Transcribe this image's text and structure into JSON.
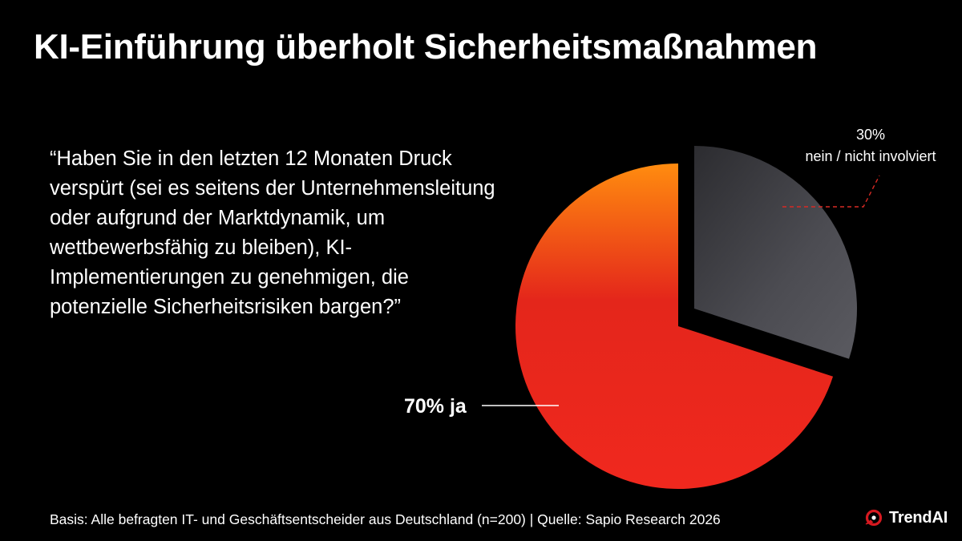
{
  "title": "KI-Einführung überholt Sicherheitsmaßnahmen",
  "question": "“Haben Sie in den letzten 12 Monaten Druck verspürt (sei es seitens der Unternehmensleitung oder aufgrund der Marktdynamik, um wettbewerbsfähig zu bleiben), KI-Implementierungen zu genehmigen, die potenzielle Sicherheitsrisiken bargen?”",
  "footer": "Basis: Alle befragten IT- und Geschäftsentscheider aus Deutschland (n=200) | Quelle: Sapio Research 2026",
  "brand": {
    "name": "TrendAI",
    "accent_color": "#d71920"
  },
  "chart_data": {
    "type": "pie",
    "title": "",
    "slices": [
      {
        "label": "ja",
        "value": 70,
        "value_text": "70%",
        "display_label": "70% ja",
        "colors": [
          "#ff8c0f",
          "#e4261b",
          "#f0281e"
        ]
      },
      {
        "label": "nein / nicht involviert",
        "value": 30,
        "value_text": "30%",
        "display_label": "nein / nicht involviert",
        "exploded": true,
        "colors": [
          "#2c2c30",
          "#4c4c52",
          "#5a5a60"
        ]
      }
    ],
    "colors": {
      "leader_line_ja": "#ffffff",
      "leader_line_nein": "#d72a24",
      "label_text": "#ffffff"
    }
  }
}
